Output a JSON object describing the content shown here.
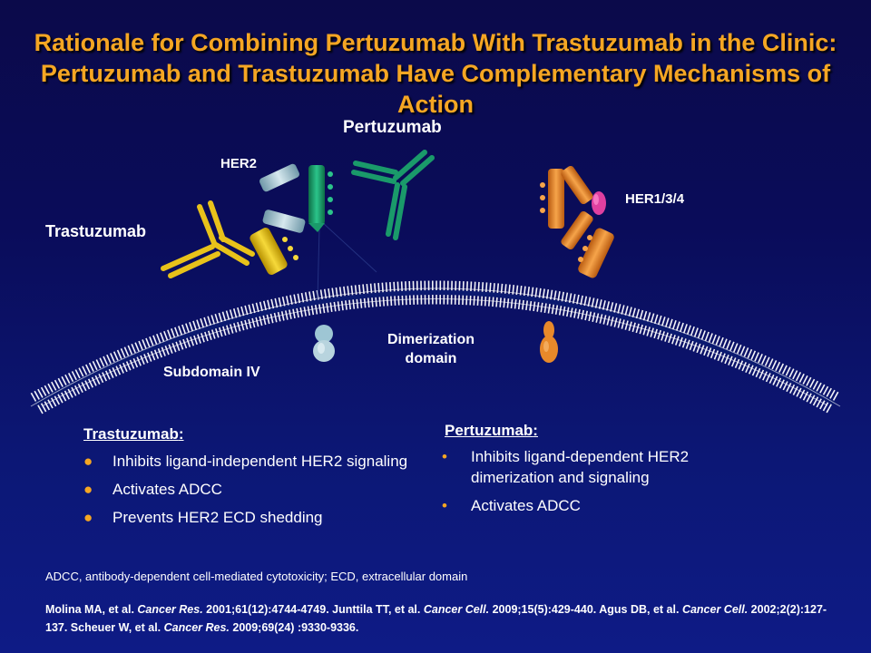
{
  "title": "Rationale for Combining Pertuzumab With Trastuzumab in the Clinic: Pertuzumab and Trastuzumab Have Complementary Mechanisms of Action",
  "diagram": {
    "label_pertuzumab": "Pertuzumab",
    "label_her2": "HER2",
    "label_her134": "HER1/3/4",
    "label_trastuzumab": "Trastuzumab",
    "label_dimerization": "Dimerization",
    "label_domain": "domain",
    "label_subdomain": "Subdomain IV"
  },
  "trastuzumab_block": {
    "heading": "Trastuzumab",
    "items": [
      "Inhibits ligand-independent  HER2 signaling",
      "Activates ADCC",
      "Prevents HER2 ECD shedding"
    ]
  },
  "pertuzumab_block": {
    "heading": "Pertuzumab",
    "items": [
      "Inhibits ligand-dependent  HER2 dimerization  and signaling",
      "Activates ADCC"
    ]
  },
  "footnote": "ADCC, antibody-dependent cell-mediated cytotoxicity;  ECD, extracellular  domain",
  "references": {
    "r1_authors": "Molina MA, et al. ",
    "r1_journal": "Cancer Res.",
    "r1_rest": " 2001;61(12):4744-4749. Junttila TT, et al. ",
    "r2_journal": "Cancer Cell.",
    "r2_rest": " 2009;15(5):429-440. Agus DB, et al. ",
    "r3_journal": "Cancer Cell.",
    "r3_rest": " 2002;2(2):127-137. Scheuer W, et al. ",
    "r4_journal": "Cancer Res.",
    "r4_rest": " 2009;69(24) :9330-9336."
  },
  "colors": {
    "title": "#f5a623",
    "her2_receptor": "#b8d4de",
    "pertuzumab": "#1a9a6a",
    "trastuzumab": "#e8c21a",
    "her134_receptor": "#e8892a",
    "dimer_partner": "#e040a0",
    "bullet": "#f5a623"
  }
}
